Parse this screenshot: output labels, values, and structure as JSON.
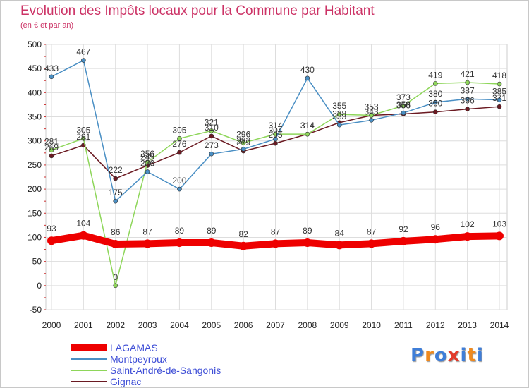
{
  "chart_data": {
    "type": "line",
    "title": "Evolution des Impôts locaux pour la Commune par Habitant",
    "subtitle": "(en € et par an)",
    "x": [
      "2000",
      "2001",
      "2002",
      "2003",
      "2004",
      "2005",
      "2006",
      "2007",
      "2008",
      "2009",
      "2010",
      "2011",
      "2012",
      "2013",
      "2014"
    ],
    "ylim": [
      -50,
      500
    ],
    "yticks": [
      -50,
      0,
      50,
      100,
      150,
      200,
      250,
      300,
      350,
      400,
      450,
      500
    ],
    "grid": true,
    "legend_position": "bottom-left",
    "series": [
      {
        "name": "LAGAMAS",
        "color": "#ee0000",
        "values": [
          93,
          104,
          86,
          87,
          89,
          89,
          82,
          87,
          89,
          84,
          87,
          92,
          96,
          102,
          103
        ]
      },
      {
        "name": "Montpeyroux",
        "color": "#4a8fc4",
        "values": [
          433,
          467,
          175,
          236,
          200,
          273,
          283,
          304,
          430,
          333,
          343,
          358,
          380,
          387,
          385
        ]
      },
      {
        "name": "Saint-André-de-Sangonis",
        "color": "#8ed65a",
        "values": [
          281,
          305,
          0,
          256,
          305,
          321,
          296,
          314,
          314,
          355,
          353,
          373,
          419,
          421,
          418
        ]
      },
      {
        "name": "Gignac",
        "color": "#6b1a22",
        "values": [
          269,
          291,
          222,
          249,
          276,
          310,
          279,
          295,
          314,
          338,
          353,
          356,
          360,
          366,
          371
        ]
      }
    ]
  },
  "brand": {
    "letters": [
      "P",
      "r",
      "o",
      "x",
      "i",
      "t",
      "i"
    ],
    "colors": [
      "#3f7ed8",
      "#f08a1e",
      "#3f7ed8",
      "#e23b2b",
      "#3f7ed8",
      "#f08a1e",
      "#3f7ed8"
    ]
  }
}
